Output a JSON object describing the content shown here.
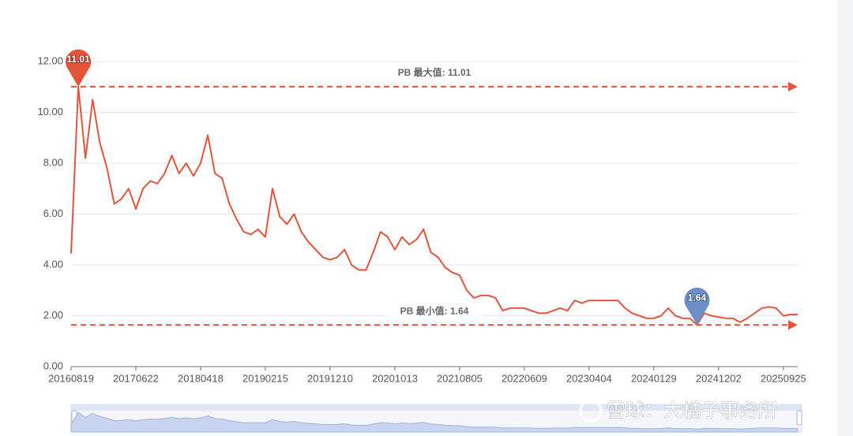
{
  "chart_data": {
    "type": "line",
    "categories": [
      "20160819",
      null,
      null,
      null,
      null,
      null,
      null,
      null,
      null,
      "20170622",
      null,
      null,
      null,
      null,
      null,
      null,
      null,
      null,
      "20180418",
      null,
      null,
      null,
      null,
      null,
      null,
      null,
      null,
      "20190215",
      null,
      null,
      null,
      null,
      null,
      null,
      null,
      null,
      "20191210",
      null,
      null,
      null,
      null,
      null,
      null,
      null,
      null,
      "20201013",
      null,
      null,
      null,
      null,
      null,
      null,
      null,
      null,
      "20210805",
      null,
      null,
      null,
      null,
      null,
      null,
      null,
      null,
      "20220609",
      null,
      null,
      null,
      null,
      null,
      null,
      null,
      null,
      "20230404",
      null,
      null,
      null,
      null,
      null,
      null,
      null,
      null,
      "20240129",
      null,
      null,
      null,
      null,
      null,
      null,
      null,
      null,
      "20241202",
      null,
      null,
      null,
      null,
      null,
      null,
      null,
      null,
      "20250925",
      null,
      null
    ],
    "series": [
      {
        "color": "#e2553a",
        "values": [
          4.45,
          11.01,
          8.2,
          10.5,
          8.8,
          7.8,
          6.4,
          6.6,
          7.0,
          6.2,
          7.0,
          7.3,
          7.2,
          7.6,
          8.3,
          7.6,
          8.0,
          7.5,
          8.0,
          9.1,
          7.6,
          7.4,
          6.4,
          5.8,
          5.3,
          5.2,
          5.4,
          5.1,
          7.0,
          5.9,
          5.6,
          6.0,
          5.3,
          4.9,
          4.6,
          4.3,
          4.2,
          4.3,
          4.6,
          4.0,
          3.8,
          3.8,
          4.5,
          5.3,
          5.1,
          4.6,
          5.1,
          4.8,
          5.0,
          5.4,
          4.5,
          4.3,
          3.9,
          3.7,
          3.6,
          3.0,
          2.7,
          2.8,
          2.8,
          2.7,
          2.2,
          2.3,
          2.3,
          2.3,
          2.2,
          2.1,
          2.1,
          2.2,
          2.3,
          2.2,
          2.6,
          2.5,
          2.6,
          2.6,
          2.6,
          2.6,
          2.6,
          2.3,
          2.1,
          2.0,
          1.9,
          1.9,
          2.0,
          2.3,
          2.0,
          1.9,
          1.9,
          1.64,
          2.1,
          2.0,
          1.95,
          1.9,
          1.9,
          1.75,
          1.9,
          2.1,
          2.3,
          2.35,
          2.3,
          2.0,
          2.05,
          2.05
        ]
      }
    ],
    "ylim": [
      0,
      12
    ],
    "yticks": [
      {
        "value": 0,
        "label": "0.00"
      },
      {
        "value": 2,
        "label": "2.00"
      },
      {
        "value": 4,
        "label": "4.00"
      },
      {
        "value": 6,
        "label": "6.00"
      },
      {
        "value": 8,
        "label": "8.00"
      },
      {
        "value": 10,
        "label": "10.00"
      },
      {
        "value": 12,
        "label": "12.00"
      }
    ],
    "grid": true,
    "mark_lines": [
      {
        "value": 11.01,
        "label": "PB 最大值: 11.01"
      },
      {
        "value": 1.64,
        "label": "PB 最小值: 1.64"
      }
    ],
    "mark_points": [
      {
        "value": 11.01,
        "label": "11.01",
        "color": "#e2553a"
      },
      {
        "value": 1.64,
        "label": "1.64",
        "color": "#6b8fc7"
      }
    ]
  },
  "watermark": "雪球：大橘子事务所"
}
